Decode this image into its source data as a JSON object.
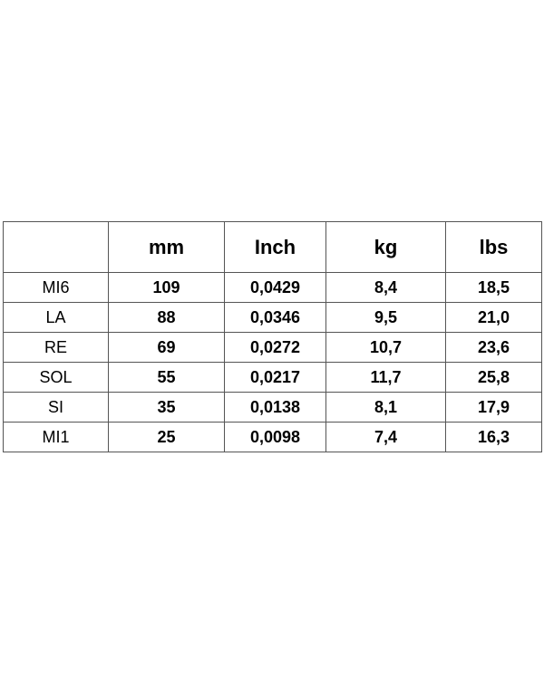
{
  "table": {
    "header": [
      "mm",
      "Inch",
      "kg",
      "lbs"
    ],
    "rows": [
      [
        "MI6",
        "109",
        "0,0429",
        "8,4",
        "18,5"
      ],
      [
        "LA",
        "88",
        "0,0346",
        "9,5",
        "21,0"
      ],
      [
        "RE",
        "69",
        "0,0272",
        "10,7",
        "23,6"
      ],
      [
        "SOL",
        "55",
        "0,0217",
        "11,7",
        "25,8"
      ],
      [
        "SI",
        "35",
        "0,0138",
        "8,1",
        "17,9"
      ],
      [
        "MI1",
        "25",
        "0,0098",
        "7,4",
        "16,3"
      ]
    ]
  }
}
